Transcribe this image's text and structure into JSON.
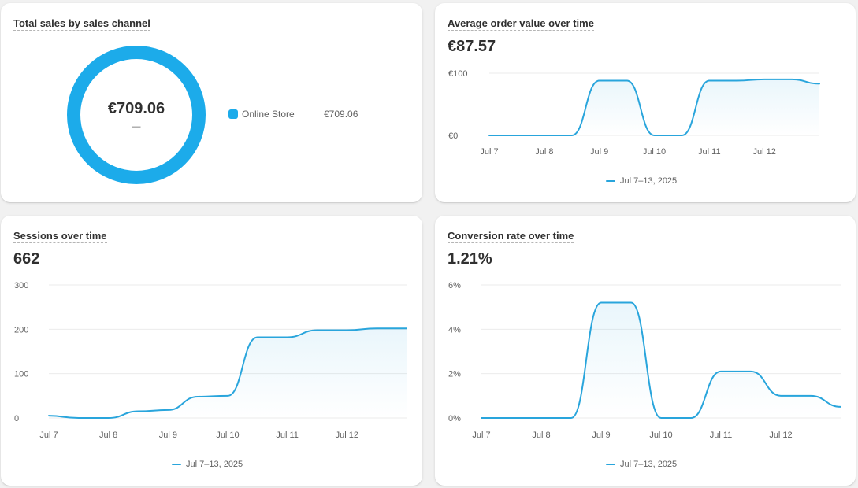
{
  "colors": {
    "accent": "#1cabea",
    "line": "#29a5dc",
    "card_bg": "#ffffff",
    "page_bg": "#f1f1f1"
  },
  "sales_by_channel": {
    "title": "Total sales by sales channel",
    "total": "€709.06",
    "total_sub": "—",
    "legend_label": "Online Store",
    "legend_value": "€709.06"
  },
  "aov": {
    "title": "Average order value over time",
    "value": "€87.57",
    "legend": "Jul 7–13, 2025"
  },
  "sessions": {
    "title": "Sessions over time",
    "value": "662",
    "legend": "Jul 7–13, 2025"
  },
  "conversion": {
    "title": "Conversion rate over time",
    "value": "1.21%",
    "legend": "Jul 7–13, 2025"
  },
  "chart_data": [
    {
      "id": "sales-donut",
      "type": "pie",
      "title": "Total sales by sales channel",
      "categories": [
        "Online Store"
      ],
      "values": [
        709.06
      ],
      "center_label": "€709.06"
    },
    {
      "id": "aov",
      "type": "line",
      "title": "Average order value over time",
      "categories": [
        "Jul 7",
        "Jul 8",
        "Jul 9",
        "Jul 10",
        "Jul 11",
        "Jul 12"
      ],
      "x": [
        0,
        0.5,
        1,
        1.5,
        2,
        2.5,
        3,
        3.5,
        4,
        4.5,
        5,
        5.5,
        6
      ],
      "y": [
        0,
        0,
        0,
        0,
        88,
        88,
        0,
        0,
        88,
        88,
        90,
        90,
        83
      ],
      "yticks": [
        "€0",
        "€100"
      ],
      "ylim": [
        0,
        100
      ],
      "grid": true,
      "series": [
        {
          "name": "Jul 7–13, 2025"
        }
      ]
    },
    {
      "id": "sessions",
      "type": "area",
      "title": "Sessions over time",
      "categories": [
        "Jul 7",
        "Jul 8",
        "Jul 9",
        "Jul 10",
        "Jul 11",
        "Jul 12"
      ],
      "x": [
        0,
        0.5,
        1,
        1.5,
        2,
        2.5,
        3,
        3.5,
        4,
        4.5,
        5,
        5.5,
        6
      ],
      "y": [
        5,
        0,
        0,
        15,
        18,
        48,
        50,
        182,
        182,
        198,
        198,
        202,
        202
      ],
      "yticks": [
        "0",
        "100",
        "200",
        "300"
      ],
      "ylim": [
        0,
        300
      ],
      "grid": true,
      "series": [
        {
          "name": "Jul 7–13, 2025"
        }
      ]
    },
    {
      "id": "conversion",
      "type": "area",
      "title": "Conversion rate over time",
      "categories": [
        "Jul 7",
        "Jul 8",
        "Jul 9",
        "Jul 10",
        "Jul 11",
        "Jul 12"
      ],
      "x": [
        0,
        0.5,
        1,
        1.5,
        2,
        2.5,
        3,
        3.5,
        4,
        4.5,
        5,
        5.5,
        6
      ],
      "y": [
        0,
        0,
        0,
        0,
        5.2,
        5.2,
        0,
        0,
        2.1,
        2.1,
        1.0,
        1.0,
        0.5
      ],
      "yticks": [
        "0%",
        "2%",
        "4%",
        "6%"
      ],
      "ylim": [
        0,
        6
      ],
      "grid": true,
      "series": [
        {
          "name": "Jul 7–13, 2025"
        }
      ]
    }
  ]
}
